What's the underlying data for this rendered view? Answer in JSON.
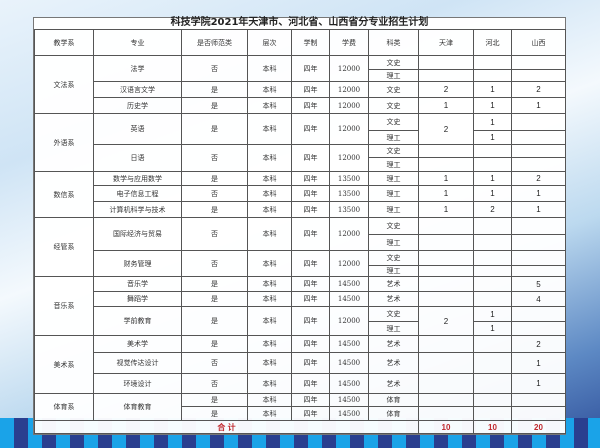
{
  "title": "科技学院2021年天津市、河北省、山西省分专业招生计划",
  "headers": [
    "教学系",
    "专业",
    "是否师范类",
    "层次",
    "学制",
    "学费",
    "科类",
    "天津",
    "河北",
    "山西"
  ],
  "departments": [
    {
      "name": "文法系",
      "majors": [
        {
          "name": "法学",
          "normal": "否",
          "level": "本科",
          "years": "四年",
          "fee": "12000",
          "tracks": [
            {
              "type": "文史"
            },
            {
              "type": "理工"
            }
          ]
        },
        {
          "name": "汉语言文学",
          "normal": "是",
          "level": "本科",
          "years": "四年",
          "fee": "12000",
          "tracks": [
            {
              "type": "文史",
              "tj": "2",
              "hb": "1",
              "sx": "2"
            }
          ]
        },
        {
          "name": "历史学",
          "normal": "是",
          "level": "本科",
          "years": "四年",
          "fee": "12000",
          "tracks": [
            {
              "type": "文史",
              "tj": "1",
              "hb": "1",
              "sx": "1"
            }
          ]
        }
      ]
    },
    {
      "name": "外语系",
      "majors": [
        {
          "name": "英语",
          "normal": "是",
          "level": "本科",
          "years": "四年",
          "fee": "12000",
          "tj": "2",
          "tracks": [
            {
              "type": "文史",
              "hb": "1"
            },
            {
              "type": "理工",
              "hb": "1"
            }
          ]
        },
        {
          "name": "日语",
          "normal": "否",
          "level": "本科",
          "years": "四年",
          "fee": "12000",
          "tracks": [
            {
              "type": "文史"
            },
            {
              "type": "理工"
            }
          ]
        }
      ]
    },
    {
      "name": "数信系",
      "majors": [
        {
          "name": "数学与应用数学",
          "normal": "是",
          "level": "本科",
          "years": "四年",
          "fee": "13500",
          "tracks": [
            {
              "type": "理工",
              "tj": "1",
              "hb": "1",
              "sx": "2"
            }
          ]
        },
        {
          "name": "电子信息工程",
          "normal": "否",
          "level": "本科",
          "years": "四年",
          "fee": "13500",
          "tracks": [
            {
              "type": "理工",
              "tj": "1",
              "hb": "1",
              "sx": "1"
            }
          ]
        },
        {
          "name": "计算机科学与技术",
          "normal": "是",
          "level": "本科",
          "years": "四年",
          "fee": "13500",
          "tracks": [
            {
              "type": "理工",
              "tj": "1",
              "hb": "2",
              "sx": "1"
            }
          ]
        }
      ]
    },
    {
      "name": "经管系",
      "majors": [
        {
          "name": "国际经济与贸易",
          "normal": "否",
          "level": "本科",
          "years": "四年",
          "fee": "12000",
          "tracks": [
            {
              "type": "文史"
            },
            {
              "type": "理工"
            }
          ]
        },
        {
          "name": "财务管理",
          "normal": "否",
          "level": "本科",
          "years": "四年",
          "fee": "12000",
          "tracks": [
            {
              "type": "文史"
            },
            {
              "type": "理工"
            }
          ]
        }
      ]
    },
    {
      "name": "音乐系",
      "majors": [
        {
          "name": "音乐学",
          "normal": "是",
          "level": "本科",
          "years": "四年",
          "fee": "14500",
          "tracks": [
            {
              "type": "艺术",
              "sx": "5"
            }
          ]
        },
        {
          "name": "舞蹈学",
          "normal": "是",
          "level": "本科",
          "years": "四年",
          "fee": "14500",
          "tracks": [
            {
              "type": "艺术",
              "sx": "4"
            }
          ]
        },
        {
          "name": "学前教育",
          "normal": "是",
          "level": "本科",
          "years": "四年",
          "fee": "12000",
          "tj": "2",
          "tracks": [
            {
              "type": "文史",
              "hb": "1"
            },
            {
              "type": "理工",
              "hb": "1"
            }
          ]
        }
      ]
    },
    {
      "name": "美术系",
      "majors": [
        {
          "name": "美术学",
          "normal": "是",
          "level": "本科",
          "years": "四年",
          "fee": "14500",
          "tracks": [
            {
              "type": "艺术",
              "sx": "2"
            }
          ]
        },
        {
          "name": "视觉传达设计",
          "normal": "否",
          "level": "本科",
          "years": "四年",
          "fee": "14500",
          "tracks": [
            {
              "type": "艺术",
              "sx": "1"
            }
          ]
        },
        {
          "name": "环境设计",
          "normal": "否",
          "level": "本科",
          "years": "四年",
          "fee": "14500",
          "tracks": [
            {
              "type": "艺术",
              "sx": "1"
            }
          ]
        }
      ]
    },
    {
      "name": "体育系",
      "majors": [
        {
          "name": "体育教育",
          "tracks": [
            {
              "normal": "是",
              "level": "本科",
              "years": "四年",
              "fee": "14500",
              "type": "体育"
            },
            {
              "normal": "是",
              "level": "本科",
              "years": "四年",
              "fee": "14500",
              "type": "体育"
            }
          ]
        }
      ]
    }
  ],
  "total": {
    "label": "合 计",
    "tj": "10",
    "hb": "10",
    "sx": "20"
  },
  "colors": {
    "total_text": "#c0282d",
    "background_accent": "#1aa3e8"
  }
}
